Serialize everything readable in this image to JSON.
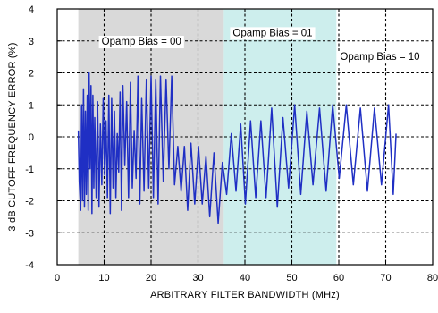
{
  "chart_data": {
    "type": "line",
    "xlabel": "ARBITRARY FILTER BANDWIDTH (MHz)",
    "ylabel": "3 dB CUTOFF FREQUENCY ERROR (%)",
    "xlim": [
      0,
      80
    ],
    "ylim": [
      -4,
      4
    ],
    "x_ticks": [
      "0",
      "10",
      "20",
      "30",
      "40",
      "50",
      "60",
      "70",
      "80"
    ],
    "y_ticks": [
      "4",
      "3",
      "2",
      "1",
      "0",
      "-1",
      "-2",
      "-3",
      "-4"
    ],
    "grid": true,
    "regions": [
      {
        "label": "Opamp Bias = 00",
        "x_start": 4.5,
        "x_end": 35.5,
        "color": "#d9d9d9"
      },
      {
        "label": "Opamp Bias = 01",
        "x_start": 35.5,
        "x_end": 59.5,
        "color": "#cdeeed"
      },
      {
        "label": "Opamp Bias = 10",
        "x_start": 59.5,
        "x_end": 80,
        "color": "#ffffff"
      }
    ],
    "series": [
      {
        "color": "#1f2fc4",
        "x": [
          4.5,
          4.7,
          5.0,
          5.2,
          5.4,
          5.6,
          5.8,
          6.0,
          6.2,
          6.4,
          6.6,
          6.8,
          7.0,
          7.2,
          7.4,
          7.6,
          7.8,
          8.0,
          8.3,
          8.6,
          8.9,
          9.2,
          9.5,
          9.8,
          10.1,
          10.4,
          10.7,
          11.0,
          11.3,
          11.6,
          11.9,
          12.2,
          12.5,
          12.8,
          13.1,
          13.4,
          13.7,
          14.0,
          14.4,
          14.8,
          15.2,
          15.6,
          16.0,
          16.4,
          16.8,
          17.2,
          17.6,
          18.0,
          18.5,
          19.0,
          19.5,
          20.0,
          20.5,
          21.0,
          21.5,
          22.0,
          22.6,
          23.2,
          23.8,
          24.4,
          25.0,
          25.7,
          26.4,
          27.1,
          27.8,
          28.5,
          29.3,
          30.1,
          30.9,
          31.7,
          32.5,
          33.4,
          34.3,
          35.2,
          36.1,
          37.1,
          38.1,
          39.1,
          40.1,
          41.2,
          42.3,
          43.4,
          44.5,
          45.7,
          46.9,
          48.1,
          49.3,
          50.6,
          51.9,
          53.2,
          54.5,
          55.9,
          57.3,
          58.7,
          60.1,
          61.6,
          63.1,
          64.6,
          66.1,
          67.6,
          69.1,
          70.6,
          71.6,
          72.2
        ],
        "y": [
          0.2,
          -1.4,
          -2.3,
          1.0,
          -2.0,
          1.5,
          -2.2,
          0.8,
          -1.8,
          1.3,
          -2.3,
          2.0,
          -1.0,
          1.6,
          -2.4,
          1.3,
          -1.6,
          0.6,
          -1.9,
          1.1,
          -2.2,
          0.4,
          -1.5,
          1.2,
          -1.2,
          0.5,
          -1.9,
          1.3,
          -2.4,
          1.2,
          -1.6,
          0.8,
          -1.9,
          0.1,
          -1.1,
          1.4,
          -2.3,
          1.6,
          -0.9,
          1.1,
          -1.9,
          1.7,
          -1.6,
          0.2,
          -1.3,
          1.9,
          -2.1,
          1.2,
          -1.7,
          1.8,
          -1.6,
          1.9,
          -1.9,
          1.8,
          -2.1,
          1.9,
          -1.4,
          1.8,
          -1.0,
          1.9,
          -1.5,
          -0.3,
          -1.7,
          -0.3,
          -2.3,
          -0.2,
          -2.1,
          -0.3,
          -2.1,
          -0.6,
          -2.5,
          -0.5,
          -2.7,
          -0.8,
          -1.8,
          0.1,
          -1.7,
          0.4,
          -2.1,
          0.5,
          -1.9,
          0.5,
          -1.9,
          0.9,
          -2.2,
          0.6,
          -1.6,
          1.0,
          -1.8,
          0.8,
          -1.5,
          0.9,
          -1.7,
          1.0,
          -1.3,
          1.0,
          -1.5,
          0.9,
          -1.7,
          0.9,
          -1.5,
          1.0,
          -1.8,
          0.1
        ]
      }
    ]
  }
}
